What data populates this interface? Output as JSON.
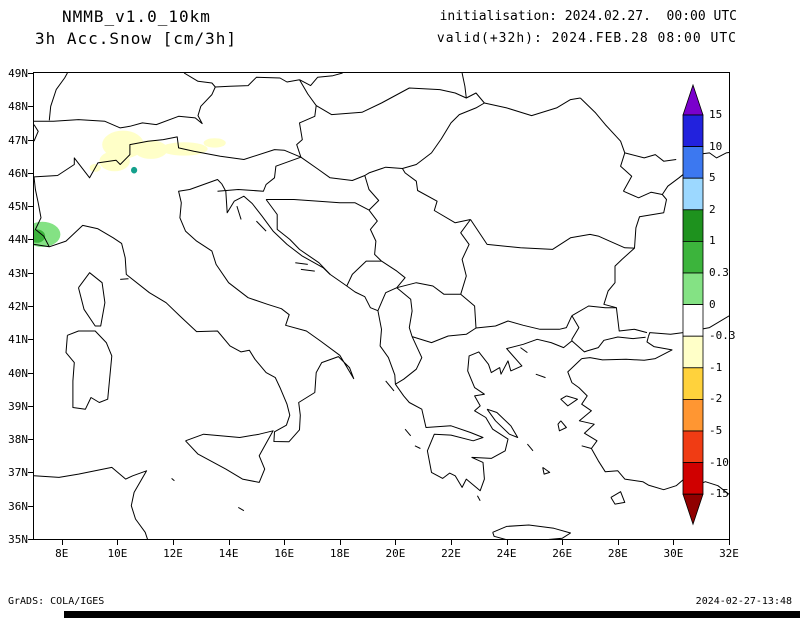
{
  "header": {
    "model": "NMMB_v1.0_10km",
    "field": "3h Acc.Snow [cm/3h]",
    "init": "initialisation: 2024.02.27.  00:00 UTC",
    "valid": "valid(+32h): 2024.FEB.28 08:00 UTC"
  },
  "footer": {
    "left": "GrADS: COLA/IGES",
    "right": "2024-02-27-13:48"
  },
  "axes": {
    "x_ticks": [
      "8E",
      "10E",
      "12E",
      "14E",
      "16E",
      "18E",
      "20E",
      "22E",
      "24E",
      "26E",
      "28E",
      "30E",
      "32E"
    ],
    "y_ticks": [
      "49N",
      "48N",
      "47N",
      "46N",
      "45N",
      "44N",
      "43N",
      "42N",
      "41N",
      "40N",
      "39N",
      "38N",
      "37N",
      "36N",
      "35N"
    ]
  },
  "chart_data": {
    "type": "heatmap",
    "title": "3h Acc.Snow [cm/3h]",
    "model": "NMMB_v1.0_10km",
    "initialisation": "2024.02.27. 00:00 UTC",
    "valid": "2024.FEB.28 08:00 UTC (+32h)",
    "projection": "lat-lon map, longitude 7E to 32E, latitude 35N to 49N",
    "grid": false,
    "colorbar": {
      "orientation": "vertical, right side, arrow caps both ends",
      "labels": [
        "15",
        "10",
        "5",
        "2",
        "1",
        "0.3",
        "0",
        "-0.3",
        "-1",
        "-2",
        "-5",
        "-10",
        "-15"
      ],
      "colors_top_to_bottom": [
        "#7a00cc",
        "#2222dd",
        "#3c78f0",
        "#9cd8ff",
        "#1e921e",
        "#3cb43c",
        "#84e284",
        "#ffffff",
        "#ffffc8",
        "#ffd23c",
        "#ff9632",
        "#f03c14",
        "#d00000",
        "#900000"
      ]
    },
    "shaded_regions": [
      {
        "shape": "ellipse",
        "lon": 10.2,
        "lat": 46.85,
        "rx_deg": 0.75,
        "ry_deg": 0.42,
        "value_band": "-1 to -0.3",
        "color": "#ffffc8"
      },
      {
        "shape": "ellipse",
        "lon": 9.9,
        "lat": 46.35,
        "rx_deg": 0.55,
        "ry_deg": 0.3,
        "value_band": "-1 to -0.3",
        "color": "#ffffc8"
      },
      {
        "shape": "ellipse",
        "lon": 11.2,
        "lat": 46.7,
        "rx_deg": 0.6,
        "ry_deg": 0.28,
        "value_band": "-1 to -0.3",
        "color": "#ffffc8"
      },
      {
        "shape": "ellipse",
        "lon": 12.4,
        "lat": 46.72,
        "rx_deg": 0.85,
        "ry_deg": 0.2,
        "value_band": "-1 to -0.3",
        "color": "#ffffc8"
      },
      {
        "shape": "ellipse",
        "lon": 13.5,
        "lat": 46.9,
        "rx_deg": 0.4,
        "ry_deg": 0.14,
        "value_band": "-1 to -0.3",
        "color": "#ffffc8"
      },
      {
        "shape": "ellipse",
        "lon": 9.2,
        "lat": 46.15,
        "rx_deg": 0.2,
        "ry_deg": 0.12,
        "value_band": "-1 to -0.3",
        "color": "#ffffc8"
      },
      {
        "shape": "ellipse",
        "lon": 10.6,
        "lat": 46.08,
        "rx_deg": 0.11,
        "ry_deg": 0.1,
        "value_band": "small positive spot",
        "color": "#14a08c"
      },
      {
        "shape": "ellipse",
        "lon": 7.3,
        "lat": 44.15,
        "rx_deg": 0.65,
        "ry_deg": 0.38,
        "value_band": "0 to 0.3",
        "color": "#84e284"
      },
      {
        "shape": "ellipse",
        "lon": 7.1,
        "lat": 44.1,
        "rx_deg": 0.3,
        "ry_deg": 0.2,
        "value_band": "0.3 to 1",
        "color": "#3cb43c"
      }
    ]
  }
}
